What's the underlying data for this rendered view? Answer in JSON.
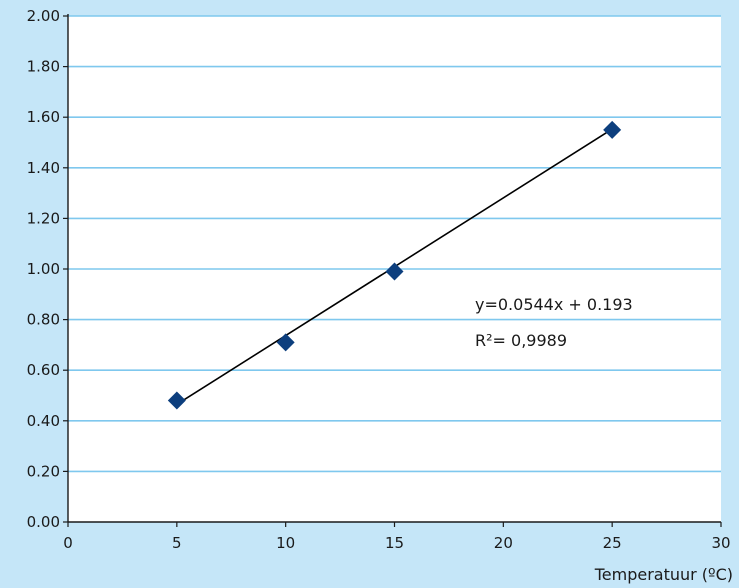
{
  "colors": {
    "background": "#c5e6f8",
    "plot_area": "#ffffff",
    "gridline": "#7fc8ee",
    "axis": "#1a1a1a",
    "marker": "#0d3f7e",
    "trendline": "#000000"
  },
  "chart_data": {
    "type": "scatter",
    "title": "",
    "xlabel": "Temperatuur (ºC)",
    "ylabel": "",
    "xlim": [
      0,
      30
    ],
    "ylim": [
      0,
      2
    ],
    "x_ticks": [
      "0",
      "5",
      "10",
      "15",
      "20",
      "25",
      "30"
    ],
    "y_ticks": [
      "0.00",
      "0.20",
      "0.40",
      "0.60",
      "0.80",
      "1.00",
      "1.20",
      "1.40",
      "1.60",
      "1.80",
      "2.00"
    ],
    "grid": "horizontal",
    "series": [
      {
        "marker": "diamond",
        "x": [
          5,
          10,
          15,
          25
        ],
        "y": [
          0.48,
          0.71,
          0.99,
          1.55
        ]
      }
    ],
    "trendline": {
      "slope": 0.0544,
      "intercept": 0.193,
      "x_range": [
        5,
        25
      ]
    },
    "annotations": [
      "y=0.0544x + 0.193",
      "R²= 0,9989"
    ]
  }
}
